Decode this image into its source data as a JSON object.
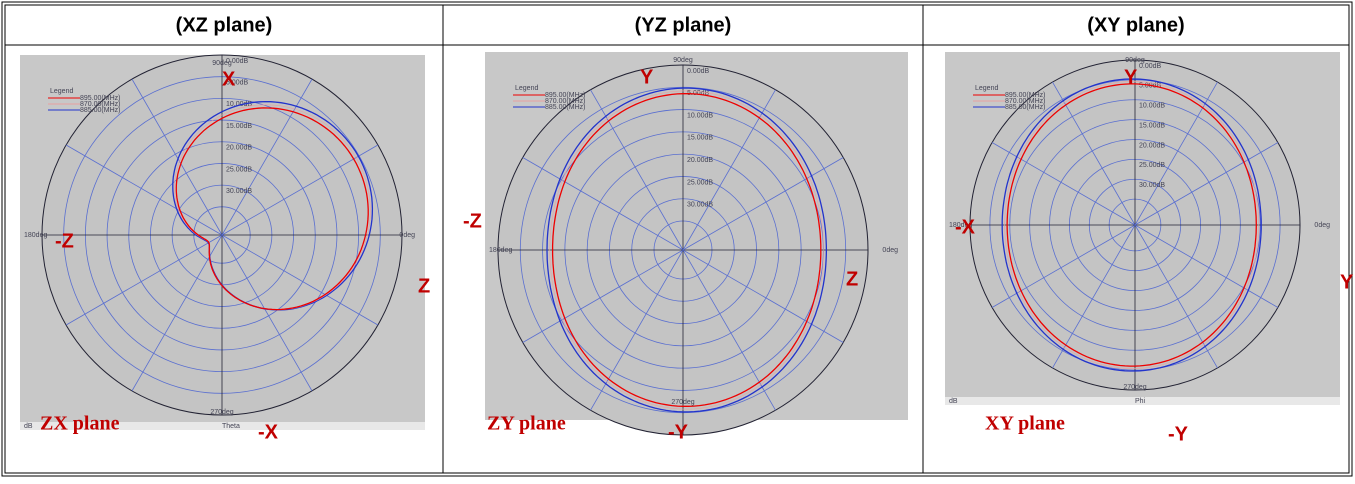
{
  "header": {
    "columns": [
      "(XZ plane)",
      "(YZ plane)",
      "(XY plane)"
    ]
  },
  "panels": [
    {
      "plot": {
        "angle_labels": [
          "90deg",
          "0deg",
          "180deg",
          "270deg"
        ],
        "ring_labels": [
          "0.00dB",
          "5.00dB",
          "10.00dB",
          "15.00dB",
          "20.00dB",
          "25.00dB",
          "30.00dB"
        ],
        "legend_title": "Legend",
        "legend_items": [
          "895.00(MHz)",
          "870.00(MHz)",
          "885.00(MHz)"
        ],
        "footer": [
          "dB",
          "Theta"
        ]
      },
      "annotations": [
        "X",
        "-Z",
        "Z",
        "-X"
      ],
      "caption": "ZX plane"
    },
    {
      "plot": {
        "angle_labels": [
          "90deg",
          "0deg",
          "180deg",
          "270deg"
        ],
        "ring_labels": [
          "0.00dB",
          "5.00dB",
          "10.00dB",
          "15.00dB",
          "20.00dB",
          "25.00dB",
          "30.00dB"
        ],
        "legend_title": "Legend",
        "legend_items": [
          "895.00(MHz)",
          "870.00(MHz)",
          "885.00(MHz)"
        ]
      },
      "annotations": [
        "Y",
        "-Z",
        "Z",
        "-Y"
      ],
      "caption": "ZY plane"
    },
    {
      "plot": {
        "angle_labels": [
          "90deg",
          "0deg",
          "180deg",
          "270deg"
        ],
        "ring_labels": [
          "0.00dB",
          "5.00dB",
          "10.00dB",
          "15.00dB",
          "20.00dB",
          "25.00dB",
          "30.00dB"
        ],
        "legend_title": "Legend",
        "legend_items": [
          "895.00(MHz)",
          "870.00(MHz)",
          "885.00(MHz)"
        ],
        "footer": [
          "dB",
          "Phi"
        ]
      },
      "annotations": [
        "Y",
        "-X",
        "Y",
        "-Y"
      ],
      "caption": "XY plane"
    }
  ]
}
